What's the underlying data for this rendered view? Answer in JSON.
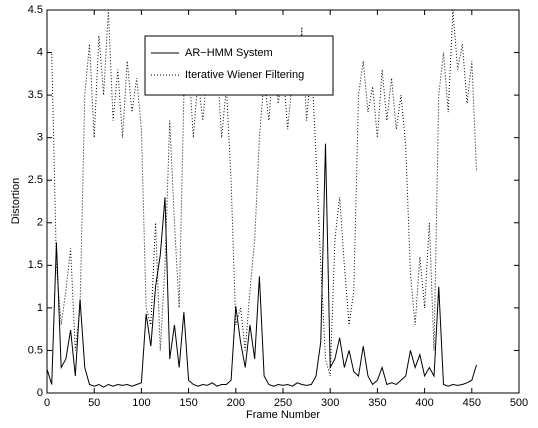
{
  "chart_data": {
    "type": "line",
    "xlabel": "Frame Number",
    "ylabel": "Distortion",
    "x": [
      0,
      5,
      10,
      15,
      20,
      25,
      30,
      35,
      40,
      45,
      50,
      55,
      60,
      65,
      70,
      75,
      80,
      85,
      90,
      95,
      100,
      105,
      110,
      115,
      120,
      125,
      130,
      135,
      140,
      145,
      150,
      155,
      160,
      165,
      170,
      175,
      180,
      185,
      190,
      195,
      200,
      205,
      210,
      215,
      220,
      225,
      230,
      235,
      240,
      245,
      250,
      255,
      260,
      265,
      270,
      275,
      280,
      285,
      290,
      295,
      300,
      305,
      310,
      315,
      320,
      325,
      330,
      335,
      340,
      345,
      350,
      355,
      360,
      365,
      370,
      375,
      380,
      385,
      390,
      395,
      400,
      405,
      410,
      415,
      420,
      425,
      430,
      435,
      440,
      445,
      450,
      455
    ],
    "series": [
      {
        "name": "AR−HMM System",
        "color": "#000000",
        "style": "solid",
        "values": [
          0.28,
          0.1,
          1.77,
          0.3,
          0.4,
          0.74,
          0.2,
          1.1,
          0.3,
          0.1,
          0.08,
          0.1,
          0.07,
          0.1,
          0.08,
          0.1,
          0.09,
          0.1,
          0.08,
          0.1,
          0.12,
          0.93,
          0.55,
          1.25,
          1.62,
          2.3,
          0.4,
          0.8,
          0.3,
          0.95,
          0.15,
          0.1,
          0.08,
          0.1,
          0.09,
          0.12,
          0.08,
          0.1,
          0.1,
          0.15,
          1.02,
          0.6,
          0.3,
          0.8,
          0.4,
          1.37,
          0.2,
          0.1,
          0.08,
          0.1,
          0.09,
          0.1,
          0.08,
          0.12,
          0.1,
          0.09,
          0.1,
          0.2,
          0.6,
          2.93,
          0.3,
          0.4,
          0.65,
          0.3,
          0.5,
          0.25,
          0.2,
          0.55,
          0.2,
          0.1,
          0.15,
          0.3,
          0.1,
          0.12,
          0.1,
          0.15,
          0.2,
          0.5,
          0.3,
          0.45,
          0.2,
          0.3,
          0.2,
          1.25,
          0.1,
          0.08,
          0.1,
          0.09,
          0.1,
          0.12,
          0.15,
          0.33
        ]
      },
      {
        "name": "Iterative Wiener Filtering",
        "color": "#000000",
        "style": "dotted",
        "values": [
          4.0,
          4.0,
          1.5,
          0.8,
          1.2,
          1.7,
          0.5,
          1.0,
          3.5,
          4.1,
          3.0,
          4.2,
          3.5,
          4.5,
          3.2,
          3.8,
          3.0,
          3.9,
          3.3,
          3.7,
          3.1,
          1.0,
          0.8,
          2.0,
          0.5,
          1.5,
          3.2,
          2.0,
          1.0,
          3.5,
          3.9,
          3.0,
          3.7,
          3.2,
          3.8,
          3.5,
          3.9,
          3.0,
          3.6,
          2.5,
          0.8,
          1.0,
          0.5,
          1.2,
          1.8,
          3.0,
          3.7,
          3.2,
          3.9,
          3.4,
          3.8,
          3.1,
          3.7,
          3.5,
          4.3,
          3.2,
          3.9,
          2.8,
          1.5,
          0.4,
          0.2,
          1.8,
          2.3,
          1.5,
          0.8,
          1.2,
          3.5,
          3.9,
          3.3,
          3.6,
          3.0,
          3.8,
          3.2,
          3.7,
          3.1,
          3.5,
          2.9,
          1.4,
          0.8,
          1.6,
          1.0,
          2.0,
          0.5,
          3.5,
          4.0,
          3.3,
          4.5,
          3.8,
          4.1,
          3.4,
          3.9,
          2.6
        ]
      }
    ],
    "xlim": [
      0,
      500
    ],
    "xticks": [
      0,
      50,
      100,
      150,
      200,
      250,
      300,
      350,
      400,
      450,
      500
    ],
    "ylim": [
      0,
      4.5
    ],
    "yticks": [
      0,
      0.5,
      1,
      1.5,
      2,
      2.5,
      3,
      3.5,
      4,
      4.5
    ],
    "grid": false,
    "legend": "upper center"
  }
}
